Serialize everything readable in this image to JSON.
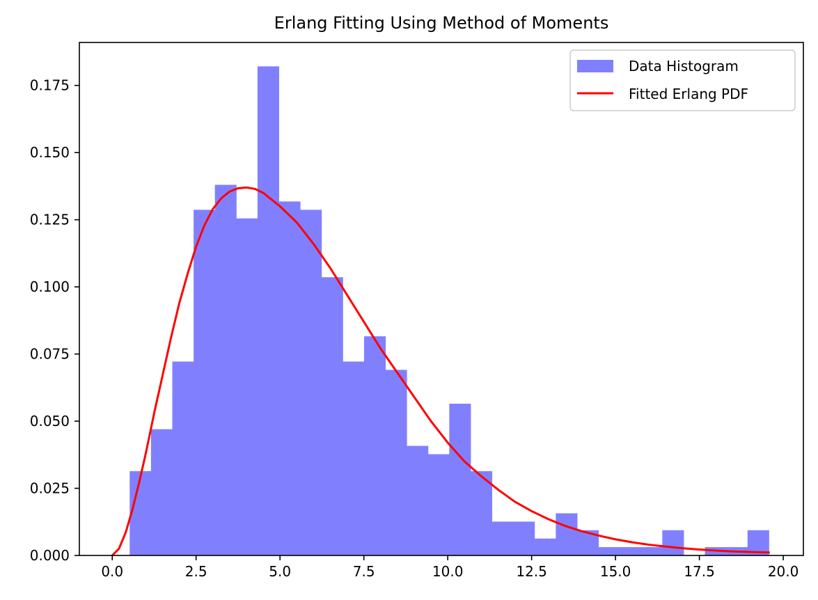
{
  "chart_data": {
    "type": "bar",
    "title": "Erlang Fitting Using Method of Moments",
    "xlabel": "",
    "ylabel": "",
    "xlim": [
      -0.98,
      20.6
    ],
    "ylim": [
      0.0,
      0.191
    ],
    "x_ticks": [
      {
        "value": 0.0,
        "label": "0.0"
      },
      {
        "value": 2.5,
        "label": "2.5"
      },
      {
        "value": 5.0,
        "label": "5.0"
      },
      {
        "value": 7.5,
        "label": "7.5"
      },
      {
        "value": 10.0,
        "label": "10.0"
      },
      {
        "value": 12.5,
        "label": "12.5"
      },
      {
        "value": 15.0,
        "label": "15.0"
      },
      {
        "value": 17.5,
        "label": "17.5"
      },
      {
        "value": 20.0,
        "label": "20.0"
      }
    ],
    "y_ticks": [
      {
        "value": 0.0,
        "label": "0.000"
      },
      {
        "value": 0.025,
        "label": "0.025"
      },
      {
        "value": 0.05,
        "label": "0.050"
      },
      {
        "value": 0.075,
        "label": "0.075"
      },
      {
        "value": 0.1,
        "label": "0.100"
      },
      {
        "value": 0.125,
        "label": "0.125"
      },
      {
        "value": 0.15,
        "label": "0.150"
      },
      {
        "value": 0.175,
        "label": "0.175"
      }
    ],
    "grid": false,
    "legend_position": "top-right",
    "series": [
      {
        "name": "Data Histogram",
        "kind": "histogram",
        "color": "#8080ff",
        "bin_edges": [
          0.52,
          1.155,
          1.79,
          2.425,
          3.06,
          3.695,
          4.33,
          4.965,
          5.6,
          6.235,
          6.87,
          7.505,
          8.14,
          8.775,
          9.41,
          10.045,
          10.68,
          11.315,
          11.95,
          12.585,
          13.22,
          13.855,
          14.49,
          15.125,
          15.76,
          16.395,
          17.03,
          17.665,
          18.3,
          18.935,
          19.57
        ],
        "values": [
          0.0314,
          0.047,
          0.0722,
          0.1287,
          0.138,
          0.1255,
          0.1821,
          0.1318,
          0.1287,
          0.1036,
          0.0722,
          0.0816,
          0.0691,
          0.0408,
          0.0377,
          0.0565,
          0.0314,
          0.0126,
          0.0126,
          0.0063,
          0.0157,
          0.0094,
          0.0031,
          0.0031,
          0.0031,
          0.0094,
          0.0,
          0.0031,
          0.0031,
          0.0094
        ]
      },
      {
        "name": "Fitted Erlang PDF",
        "kind": "line",
        "color": "#ff0000",
        "x": [
          0.0,
          0.2,
          0.4,
          0.6,
          0.8,
          1.0,
          1.25,
          1.5,
          1.75,
          2.0,
          2.25,
          2.5,
          2.75,
          3.0,
          3.25,
          3.5,
          3.75,
          4.0,
          4.25,
          4.5,
          4.75,
          5.0,
          5.5,
          6.0,
          6.5,
          7.0,
          7.5,
          8.0,
          8.5,
          9.0,
          9.5,
          10.0,
          10.5,
          11.0,
          11.5,
          12.0,
          12.5,
          13.0,
          13.5,
          14.0,
          14.5,
          15.0,
          15.5,
          16.0,
          16.5,
          17.0,
          17.5,
          18.0,
          18.5,
          19.0,
          19.6
        ],
        "y": [
          0.0,
          0.0025,
          0.0085,
          0.017,
          0.027,
          0.038,
          0.053,
          0.067,
          0.081,
          0.094,
          0.105,
          0.115,
          0.123,
          0.129,
          0.133,
          0.1355,
          0.1367,
          0.137,
          0.1365,
          0.135,
          0.1325,
          0.13,
          0.124,
          0.116,
          0.107,
          0.097,
          0.087,
          0.077,
          0.068,
          0.059,
          0.05,
          0.042,
          0.035,
          0.0295,
          0.0245,
          0.02,
          0.0165,
          0.0135,
          0.011,
          0.009,
          0.0074,
          0.006,
          0.0049,
          0.004,
          0.0033,
          0.0027,
          0.0022,
          0.0018,
          0.0015,
          0.0013,
          0.0011
        ]
      }
    ]
  }
}
